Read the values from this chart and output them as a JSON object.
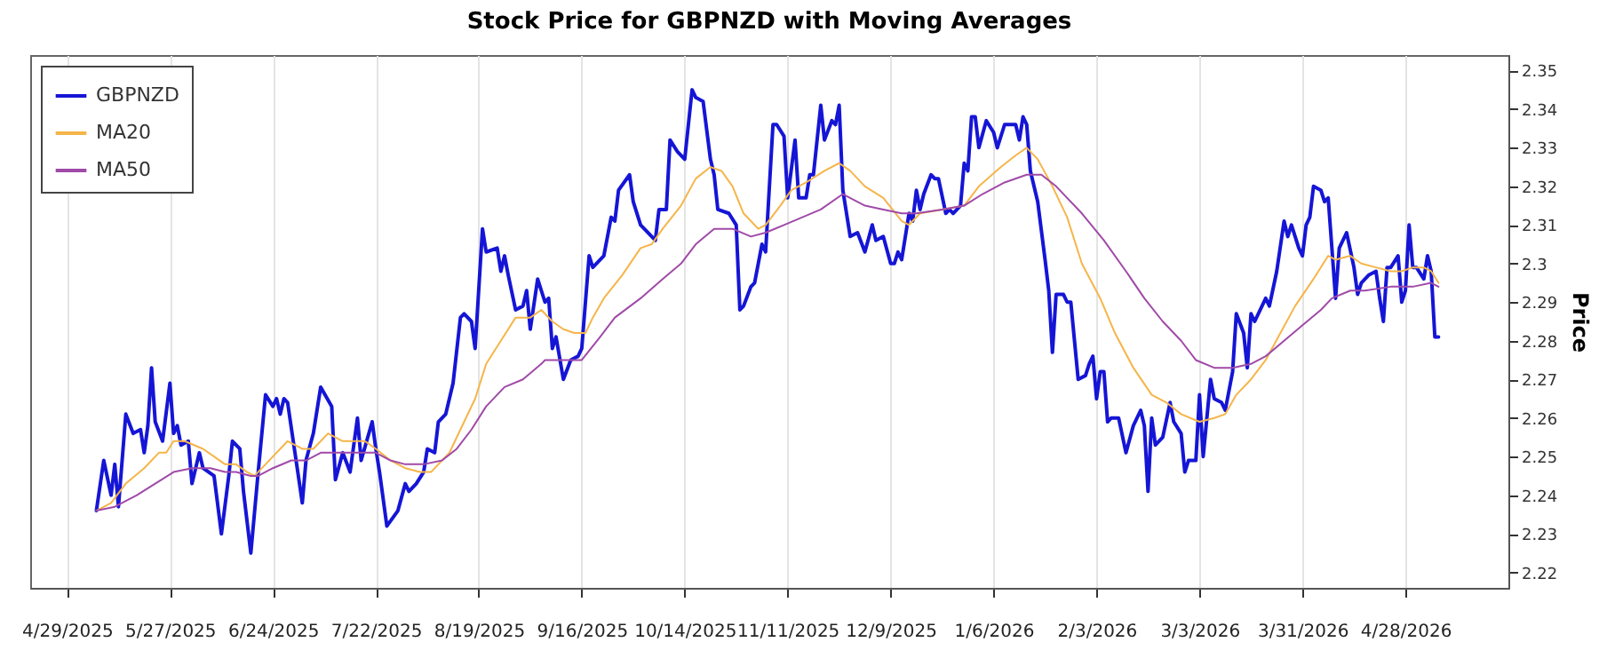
{
  "chart_data": {
    "type": "line",
    "title": "Stock Price for GBPNZD with Moving Averages",
    "ylabel": "Price",
    "xlim": [
      "2025-04-19",
      "2026-05-26"
    ],
    "ylim": [
      2.216,
      2.354
    ],
    "xticks": [
      {
        "value": "2025-04-29",
        "label": "4/29/2025"
      },
      {
        "value": "2025-05-27",
        "label": "5/27/2025"
      },
      {
        "value": "2025-06-24",
        "label": "6/24/2025"
      },
      {
        "value": "2025-07-22",
        "label": "7/22/2025"
      },
      {
        "value": "2025-08-19",
        "label": "8/19/2025"
      },
      {
        "value": "2025-09-16",
        "label": "9/16/2025"
      },
      {
        "value": "2025-10-14",
        "label": "10/14/2025"
      },
      {
        "value": "2025-11-11",
        "label": "11/11/2025"
      },
      {
        "value": "2025-12-09",
        "label": "12/9/2025"
      },
      {
        "value": "2026-01-06",
        "label": "1/6/2026"
      },
      {
        "value": "2026-02-03",
        "label": "2/3/2026"
      },
      {
        "value": "2026-03-03",
        "label": "3/3/2026"
      },
      {
        "value": "2026-03-31",
        "label": "3/31/2026"
      },
      {
        "value": "2026-04-28",
        "label": "4/28/2026"
      }
    ],
    "yticks": [
      2.22,
      2.23,
      2.24,
      2.25,
      2.26,
      2.27,
      2.28,
      2.29,
      2.3,
      2.31,
      2.32,
      2.33,
      2.34,
      2.35
    ],
    "grid": "x",
    "legend": "top left",
    "series": [
      {
        "name": "GBPNZD",
        "color": "#1515d6",
        "x": [
          "2025-05-07",
          "2025-05-09",
          "2025-05-11",
          "2025-05-12",
          "2025-05-13",
          "2025-05-15",
          "2025-05-17",
          "2025-05-19",
          "2025-05-20",
          "2025-05-21",
          "2025-05-22",
          "2025-05-23",
          "2025-05-25",
          "2025-05-27",
          "2025-05-28",
          "2025-05-29",
          "2025-05-30",
          "2025-06-01",
          "2025-06-02",
          "2025-06-04",
          "2025-06-05",
          "2025-06-08",
          "2025-06-10",
          "2025-06-12",
          "2025-06-13",
          "2025-06-15",
          "2025-06-16",
          "2025-06-18",
          "2025-06-20",
          "2025-06-22",
          "2025-06-24",
          "2025-06-25",
          "2025-06-26",
          "2025-06-27",
          "2025-06-28",
          "2025-06-30",
          "2025-07-02",
          "2025-07-03",
          "2025-07-05",
          "2025-07-07",
          "2025-07-10",
          "2025-07-11",
          "2025-07-13",
          "2025-07-15",
          "2025-07-17",
          "2025-07-18",
          "2025-07-21",
          "2025-07-22",
          "2025-07-23",
          "2025-07-25",
          "2025-07-28",
          "2025-07-30",
          "2025-07-31",
          "2025-08-02",
          "2025-08-04",
          "2025-08-05",
          "2025-08-07",
          "2025-08-08",
          "2025-08-10",
          "2025-08-12",
          "2025-08-14",
          "2025-08-15",
          "2025-08-17",
          "2025-08-18",
          "2025-08-20",
          "2025-08-21",
          "2025-08-24",
          "2025-08-25",
          "2025-08-26",
          "2025-08-27",
          "2025-08-29",
          "2025-08-31",
          "2025-09-01",
          "2025-09-02",
          "2025-09-04",
          "2025-09-06",
          "2025-09-07",
          "2025-09-08",
          "2025-09-09",
          "2025-09-11",
          "2025-09-13",
          "2025-09-15",
          "2025-09-16",
          "2025-09-18",
          "2025-09-19",
          "2025-09-22",
          "2025-09-24",
          "2025-09-25",
          "2025-09-26",
          "2025-09-29",
          "2025-09-30",
          "2025-10-02",
          "2025-10-03",
          "2025-10-06",
          "2025-10-07",
          "2025-10-09",
          "2025-10-10",
          "2025-10-12",
          "2025-10-14",
          "2025-10-16",
          "2025-10-17",
          "2025-10-19",
          "2025-10-21",
          "2025-10-22",
          "2025-10-23",
          "2025-10-26",
          "2025-10-28",
          "2025-10-29",
          "2025-10-30",
          "2025-11-01",
          "2025-11-02",
          "2025-11-04",
          "2025-11-05",
          "2025-11-07",
          "2025-11-08",
          "2025-11-10",
          "2025-11-11",
          "2025-11-13",
          "2025-11-14",
          "2025-11-16",
          "2025-11-17",
          "2025-11-18",
          "2025-11-20",
          "2025-11-21",
          "2025-11-23",
          "2025-11-24",
          "2025-11-25",
          "2025-11-26",
          "2025-11-28",
          "2025-11-30",
          "2025-12-02",
          "2025-12-04",
          "2025-12-05",
          "2025-12-07",
          "2025-12-09",
          "2025-12-10",
          "2025-12-11",
          "2025-12-12",
          "2025-12-14",
          "2025-12-15",
          "2025-12-16",
          "2025-12-17",
          "2025-12-18",
          "2025-12-20",
          "2025-12-21",
          "2025-12-22",
          "2025-12-24",
          "2025-12-25",
          "2025-12-26",
          "2025-12-28",
          "2025-12-29",
          "2025-12-30",
          "2025-12-31",
          "2026-01-01",
          "2026-01-02",
          "2026-01-04",
          "2026-01-06",
          "2026-01-07",
          "2026-01-09",
          "2026-01-12",
          "2026-01-13",
          "2026-01-14",
          "2026-01-15",
          "2026-01-16",
          "2026-01-18",
          "2026-01-20",
          "2026-01-21",
          "2026-01-22",
          "2026-01-23",
          "2026-01-25",
          "2026-01-26",
          "2026-01-27",
          "2026-01-29",
          "2026-01-31",
          "2026-02-01",
          "2026-02-02",
          "2026-02-03",
          "2026-02-04",
          "2026-02-05",
          "2026-02-06",
          "2026-02-07",
          "2026-02-09",
          "2026-02-11",
          "2026-02-13",
          "2026-02-15",
          "2026-02-16",
          "2026-02-17",
          "2026-02-18",
          "2026-02-19",
          "2026-02-21",
          "2026-02-23",
          "2026-02-24",
          "2026-02-26",
          "2026-02-27",
          "2026-02-28",
          "2026-03-02",
          "2026-03-03",
          "2026-03-04",
          "2026-03-06",
          "2026-03-07",
          "2026-03-09",
          "2026-03-10",
          "2026-03-12",
          "2026-03-13",
          "2026-03-15",
          "2026-03-16",
          "2026-03-17",
          "2026-03-18",
          "2026-03-20",
          "2026-03-21",
          "2026-03-22",
          "2026-03-24",
          "2026-03-26",
          "2026-03-27",
          "2026-03-28",
          "2026-03-30",
          "2026-03-31",
          "2026-04-01",
          "2026-04-02",
          "2026-04-03",
          "2026-04-05",
          "2026-04-06",
          "2026-04-07",
          "2026-04-09",
          "2026-04-10",
          "2026-04-12",
          "2026-04-14",
          "2026-04-15",
          "2026-04-16",
          "2026-04-18",
          "2026-04-20",
          "2026-04-21",
          "2026-04-22",
          "2026-04-23",
          "2026-04-24",
          "2026-04-26",
          "2026-04-27",
          "2026-04-28",
          "2026-04-29",
          "2026-04-30",
          "2026-05-01",
          "2026-05-03",
          "2026-05-04",
          "2026-05-05",
          "2026-05-06",
          "2026-05-07"
        ],
        "values": [
          2.236,
          2.249,
          2.24,
          2.248,
          2.237,
          2.261,
          2.256,
          2.257,
          2.251,
          2.258,
          2.273,
          2.259,
          2.254,
          2.269,
          2.256,
          2.258,
          2.253,
          2.254,
          2.243,
          2.251,
          2.247,
          2.245,
          2.23,
          2.245,
          2.254,
          2.252,
          2.241,
          2.225,
          2.246,
          2.266,
          2.263,
          2.265,
          2.261,
          2.265,
          2.264,
          2.251,
          2.238,
          2.249,
          2.256,
          2.268,
          2.263,
          2.244,
          2.251,
          2.246,
          2.26,
          2.249,
          2.259,
          2.252,
          2.246,
          2.232,
          2.236,
          2.243,
          2.241,
          2.243,
          2.246,
          2.252,
          2.251,
          2.259,
          2.261,
          2.269,
          2.286,
          2.287,
          2.285,
          2.278,
          2.309,
          2.303,
          2.304,
          2.298,
          2.302,
          2.297,
          2.288,
          2.289,
          2.293,
          2.283,
          2.296,
          2.29,
          2.291,
          2.278,
          2.281,
          2.27,
          2.275,
          2.276,
          2.278,
          2.302,
          2.299,
          2.302,
          2.312,
          2.311,
          2.319,
          2.323,
          2.316,
          2.31,
          2.309,
          2.306,
          2.314,
          2.314,
          2.332,
          2.329,
          2.327,
          2.345,
          2.343,
          2.342,
          2.327,
          2.323,
          2.314,
          2.313,
          2.31,
          2.288,
          2.289,
          2.294,
          2.295,
          2.305,
          2.303,
          2.336,
          2.336,
          2.333,
          2.317,
          2.332,
          2.317,
          2.317,
          2.323,
          2.323,
          2.341,
          2.332,
          2.337,
          2.336,
          2.341,
          2.319,
          2.307,
          2.308,
          2.303,
          2.31,
          2.306,
          2.307,
          2.3,
          2.3,
          2.303,
          2.301,
          2.313,
          2.311,
          2.319,
          2.314,
          2.318,
          2.323,
          2.322,
          2.322,
          2.313,
          2.314,
          2.313,
          2.315,
          2.326,
          2.324,
          2.338,
          2.338,
          2.33,
          2.337,
          2.334,
          2.33,
          2.336,
          2.336,
          2.332,
          2.338,
          2.336,
          2.324,
          2.316,
          2.301,
          2.293,
          2.277,
          2.292,
          2.292,
          2.29,
          2.29,
          2.27,
          2.271,
          2.274,
          2.276,
          2.265,
          2.272,
          2.272,
          2.259,
          2.26,
          2.26,
          2.251,
          2.258,
          2.262,
          2.258,
          2.241,
          2.26,
          2.253,
          2.255,
          2.264,
          2.259,
          2.256,
          2.246,
          2.249,
          2.249,
          2.266,
          2.25,
          2.27,
          2.265,
          2.264,
          2.262,
          2.272,
          2.287,
          2.282,
          2.273,
          2.287,
          2.285,
          2.289,
          2.291,
          2.289,
          2.298,
          2.311,
          2.307,
          2.31,
          2.304,
          2.302,
          2.31,
          2.312,
          2.32,
          2.319,
          2.316,
          2.317,
          2.291,
          2.304,
          2.308,
          2.299,
          2.292,
          2.295,
          2.297,
          2.298,
          2.291,
          2.285,
          2.299,
          2.299,
          2.302,
          2.29,
          2.293,
          2.31,
          2.299,
          2.299,
          2.296,
          2.302,
          2.298,
          2.281,
          2.281
        ]
      },
      {
        "name": "MA20",
        "color": "#f5b54a",
        "x": [
          "2025-05-07",
          "2025-05-11",
          "2025-05-15",
          "2025-05-20",
          "2025-05-24",
          "2025-05-26",
          "2025-05-28",
          "2025-05-31",
          "2025-06-05",
          "2025-06-08",
          "2025-06-11",
          "2025-06-14",
          "2025-06-17",
          "2025-06-19",
          "2025-06-22",
          "2025-06-26",
          "2025-06-28",
          "2025-07-02",
          "2025-07-05",
          "2025-07-07",
          "2025-07-09",
          "2025-07-13",
          "2025-07-16",
          "2025-07-19",
          "2025-07-22",
          "2025-07-26",
          "2025-07-30",
          "2025-08-03",
          "2025-08-06",
          "2025-08-09",
          "2025-08-11",
          "2025-08-14",
          "2025-08-18",
          "2025-08-21",
          "2025-08-25",
          "2025-08-29",
          "2025-09-02",
          "2025-09-05",
          "2025-09-08",
          "2025-09-11",
          "2025-09-14",
          "2025-09-17",
          "2025-09-19",
          "2025-09-22",
          "2025-09-27",
          "2025-10-02",
          "2025-10-05",
          "2025-10-08",
          "2025-10-13",
          "2025-10-17",
          "2025-10-21",
          "2025-10-24",
          "2025-10-27",
          "2025-10-30",
          "2025-11-03",
          "2025-11-05",
          "2025-11-09",
          "2025-11-12",
          "2025-11-16",
          "2025-11-21",
          "2025-11-25",
          "2025-11-28",
          "2025-12-02",
          "2025-12-07",
          "2025-12-12",
          "2025-12-14",
          "2025-12-17",
          "2025-12-23",
          "2025-12-29",
          "2026-01-02",
          "2026-01-08",
          "2026-01-12",
          "2026-01-15",
          "2026-01-18",
          "2026-01-22",
          "2026-01-26",
          "2026-01-30",
          "2026-02-04",
          "2026-02-08",
          "2026-02-13",
          "2026-02-18",
          "2026-02-22",
          "2026-02-26",
          "2026-03-03",
          "2026-03-07",
          "2026-03-10",
          "2026-03-13",
          "2026-03-17",
          "2026-03-21",
          "2026-03-25",
          "2026-03-29",
          "2026-04-03",
          "2026-04-07",
          "2026-04-09",
          "2026-04-13",
          "2026-04-16",
          "2026-04-20",
          "2026-04-24",
          "2026-04-27",
          "2026-04-30",
          "2026-05-03",
          "2026-05-05",
          "2026-05-07"
        ],
        "values": [
          2.236,
          2.238,
          2.243,
          2.247,
          2.251,
          2.251,
          2.254,
          2.254,
          2.252,
          2.25,
          2.248,
          2.248,
          2.246,
          2.245,
          2.248,
          2.252,
          2.254,
          2.252,
          2.252,
          2.254,
          2.256,
          2.254,
          2.254,
          2.254,
          2.252,
          2.249,
          2.247,
          2.246,
          2.246,
          2.249,
          2.251,
          2.257,
          2.265,
          2.274,
          2.28,
          2.286,
          2.286,
          2.288,
          2.285,
          2.283,
          2.282,
          2.282,
          2.286,
          2.291,
          2.297,
          2.304,
          2.305,
          2.309,
          2.315,
          2.322,
          2.325,
          2.324,
          2.32,
          2.313,
          2.309,
          2.31,
          2.315,
          2.319,
          2.321,
          2.324,
          2.326,
          2.324,
          2.32,
          2.317,
          2.311,
          2.31,
          2.313,
          2.314,
          2.315,
          2.32,
          2.325,
          2.328,
          2.33,
          2.327,
          2.32,
          2.312,
          2.3,
          2.291,
          2.282,
          2.273,
          2.266,
          2.264,
          2.261,
          2.259,
          2.26,
          2.261,
          2.266,
          2.27,
          2.275,
          2.282,
          2.289,
          2.296,
          2.302,
          2.301,
          2.302,
          2.3,
          2.299,
          2.298,
          2.298,
          2.299,
          2.299,
          2.298,
          2.295
        ]
      },
      {
        "name": "MA50",
        "color": "#a04aa8",
        "x": [
          "2025-05-07",
          "2025-05-12",
          "2025-05-18",
          "2025-05-23",
          "2025-05-28",
          "2025-06-02",
          "2025-06-07",
          "2025-06-11",
          "2025-06-14",
          "2025-06-18",
          "2025-06-20",
          "2025-06-24",
          "2025-06-29",
          "2025-07-03",
          "2025-07-07",
          "2025-07-11",
          "2025-07-16",
          "2025-07-22",
          "2025-07-26",
          "2025-07-30",
          "2025-08-04",
          "2025-08-09",
          "2025-08-13",
          "2025-08-17",
          "2025-08-21",
          "2025-08-26",
          "2025-08-31",
          "2025-09-05",
          "2025-09-06",
          "2025-09-11",
          "2025-09-16",
          "2025-09-21",
          "2025-09-25",
          "2025-10-02",
          "2025-10-08",
          "2025-10-13",
          "2025-10-17",
          "2025-10-22",
          "2025-10-27",
          "2025-11-01",
          "2025-11-05",
          "2025-11-10",
          "2025-11-15",
          "2025-11-20",
          "2025-11-26",
          "2025-12-02",
          "2025-12-07",
          "2025-12-12",
          "2025-12-16",
          "2025-12-23",
          "2025-12-29",
          "2026-01-03",
          "2026-01-09",
          "2026-01-15",
          "2026-01-19",
          "2026-01-23",
          "2026-01-30",
          "2026-02-05",
          "2026-02-11",
          "2026-02-16",
          "2026-02-21",
          "2026-02-26",
          "2026-03-02",
          "2026-03-07",
          "2026-03-12",
          "2026-03-17",
          "2026-03-21",
          "2026-03-26",
          "2026-03-31",
          "2026-04-05",
          "2026-04-08",
          "2026-04-13",
          "2026-04-17",
          "2026-04-24",
          "2026-04-30",
          "2026-05-05",
          "2026-05-07"
        ],
        "values": [
          2.236,
          2.237,
          2.24,
          2.243,
          2.246,
          2.247,
          2.247,
          2.246,
          2.246,
          2.245,
          2.245,
          2.247,
          2.249,
          2.249,
          2.251,
          2.251,
          2.251,
          2.251,
          2.249,
          2.248,
          2.248,
          2.249,
          2.252,
          2.257,
          2.263,
          2.268,
          2.27,
          2.274,
          2.275,
          2.275,
          2.275,
          2.281,
          2.286,
          2.291,
          2.296,
          2.3,
          2.305,
          2.309,
          2.309,
          2.307,
          2.308,
          2.31,
          2.312,
          2.314,
          2.318,
          2.315,
          2.314,
          2.313,
          2.313,
          2.314,
          2.315,
          2.318,
          2.321,
          2.323,
          2.323,
          2.32,
          2.313,
          2.306,
          2.298,
          2.291,
          2.285,
          2.28,
          2.275,
          2.273,
          2.273,
          2.274,
          2.276,
          2.28,
          2.284,
          2.288,
          2.291,
          2.293,
          2.293,
          2.294,
          2.294,
          2.295,
          2.294
        ]
      }
    ]
  }
}
